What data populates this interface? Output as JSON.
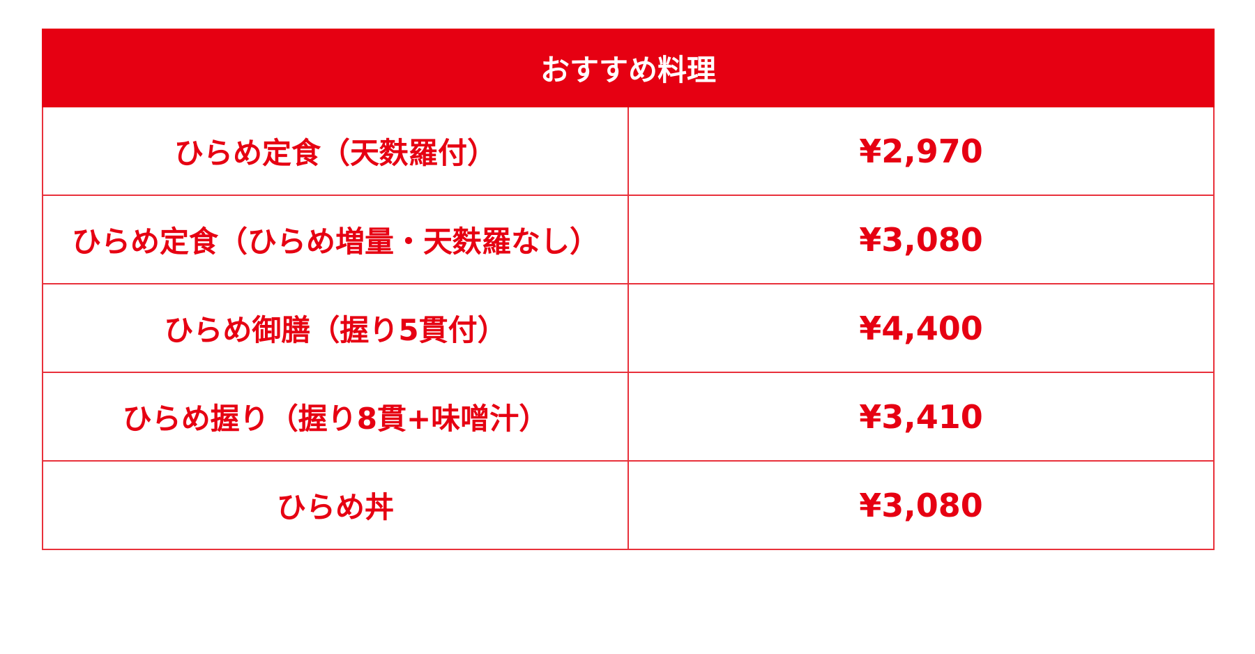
{
  "colors": {
    "accent": "#e60012",
    "header_text": "#ffffff"
  },
  "menu": {
    "title": "おすすめ料理",
    "items": [
      {
        "name": "ひらめ定食（天麩羅付）",
        "price": "¥2,970"
      },
      {
        "name": "ひらめ定食（ひらめ増量・天麩羅なし）",
        "price": "¥3,080"
      },
      {
        "name": "ひらめ御膳（握り5貫付）",
        "price": "¥4,400"
      },
      {
        "name": "ひらめ握り（握り8貫+味噌汁）",
        "price": "¥3,410"
      },
      {
        "name": "ひらめ丼",
        "price": "¥3,080"
      }
    ]
  }
}
